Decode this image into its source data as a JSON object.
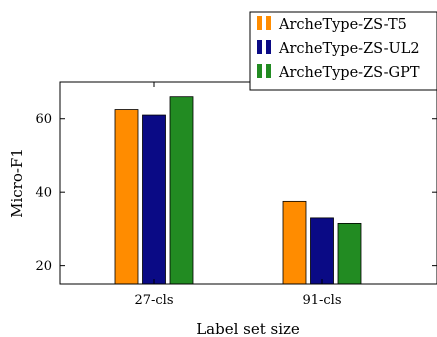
{
  "chart_data": {
    "type": "bar",
    "xlabel": "Label set size",
    "ylabel": "Micro-F1",
    "categories": [
      "27-cls",
      "91-cls"
    ],
    "ylim": [
      15,
      70
    ],
    "yticks": [
      20,
      40,
      60
    ],
    "grid": false,
    "legend_position": "top-right",
    "series": [
      {
        "name": "ArcheType-ZS-T5",
        "color": "#ff8c00",
        "values": [
          62.5,
          37.5
        ]
      },
      {
        "name": "ArcheType-ZS-UL2",
        "color": "#0a0a85",
        "values": [
          61,
          33
        ]
      },
      {
        "name": "ArcheType-ZS-GPT",
        "color": "#228b22",
        "values": [
          66,
          31.5
        ]
      }
    ]
  }
}
